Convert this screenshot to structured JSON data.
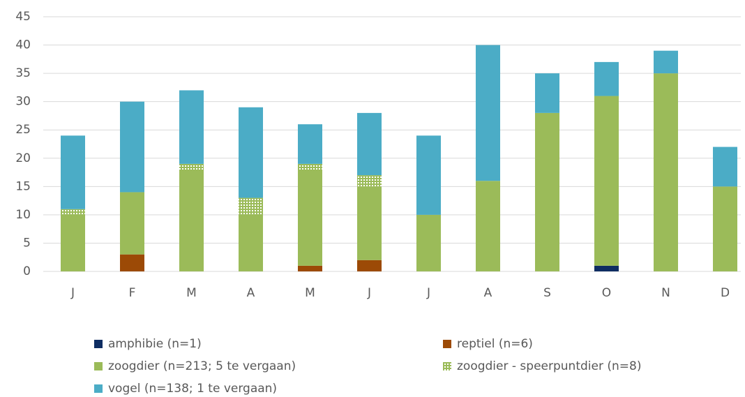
{
  "chart_data": {
    "type": "stacked_bar",
    "categories": [
      "J",
      "F",
      "M",
      "A",
      "M",
      "J",
      "J",
      "A",
      "S",
      "O",
      "N",
      "D"
    ],
    "series": [
      {
        "name": "amphibie (n=1)",
        "color": "#0e2d62",
        "values": [
          0,
          0,
          0,
          0,
          0,
          0,
          0,
          0,
          0,
          1,
          0,
          0
        ]
      },
      {
        "name": "reptiel (n=6)",
        "color": "#9c4a06",
        "values": [
          0,
          3,
          0,
          0,
          1,
          2,
          0,
          0,
          0,
          0,
          0,
          0
        ]
      },
      {
        "name": "zoogdier (n=213; 5 te vergaan)",
        "color": "#9bbb59",
        "values": [
          10,
          11,
          18,
          10,
          17,
          13,
          10,
          16,
          28,
          30,
          35,
          15
        ]
      },
      {
        "name": "zoogdier - speerpuntdier (n=8)",
        "color": "#9bbb59",
        "pattern": "dotted",
        "values": [
          1,
          0,
          1,
          3,
          1,
          2,
          0,
          0,
          0,
          0,
          0,
          0
        ]
      },
      {
        "name": "vogel (n=138; 1 te vergaan)",
        "color": "#4bacc6",
        "values": [
          13,
          16,
          13,
          16,
          7,
          11,
          14,
          24,
          7,
          6,
          4,
          7
        ]
      }
    ],
    "ylim": [
      0,
      45
    ],
    "yticks": [
      0,
      5,
      10,
      15,
      20,
      25,
      30,
      35,
      40,
      45
    ],
    "grid": true
  }
}
